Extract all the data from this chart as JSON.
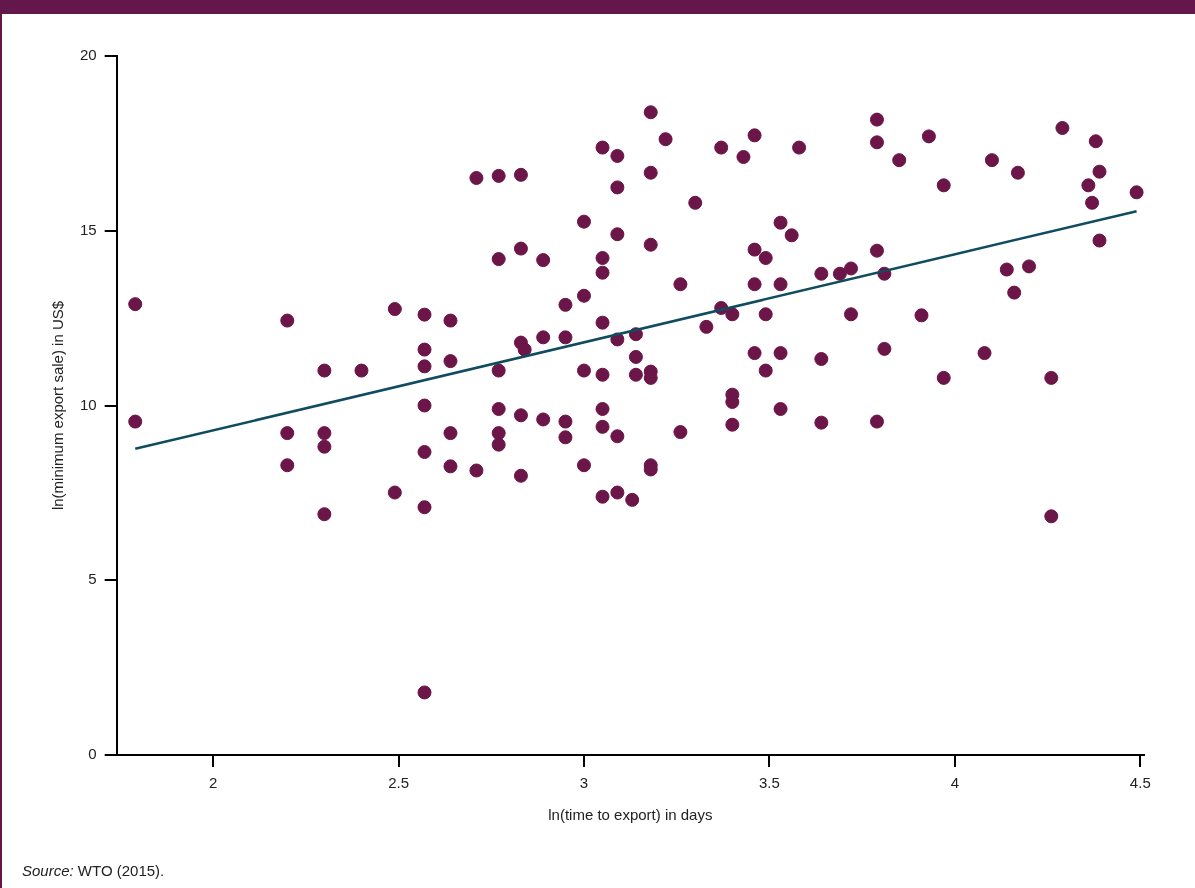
{
  "chart_data": {
    "type": "scatter",
    "xlabel": "ln(time to export) in days",
    "ylabel": "ln(minimum export sale) in US$",
    "annotations": [
      "Source: WTO (2015)."
    ],
    "xlim": [
      1.74,
      4.51
    ],
    "xticks": [
      2,
      2.5,
      3,
      3.5,
      4,
      4.5
    ],
    "ylim": [
      0,
      20
    ],
    "yticks": [
      0,
      5,
      10,
      15,
      20
    ],
    "grid": false,
    "legend": false,
    "series": [
      {
        "marker": "circle",
        "color": "#6b1548",
        "x": [
          1.79,
          1.79,
          2.2,
          2.2,
          2.2,
          2.3,
          2.3,
          2.3,
          2.3,
          2.4,
          2.49,
          2.49,
          2.57,
          2.57,
          2.57,
          2.57,
          2.57,
          2.57,
          2.57,
          2.64,
          2.64,
          2.64,
          2.64,
          2.71,
          2.71,
          2.77,
          2.77,
          2.77,
          2.77,
          2.77,
          2.77,
          2.83,
          2.83,
          2.83,
          2.84,
          2.83,
          2.83,
          2.89,
          2.89,
          2.89,
          2.95,
          2.95,
          2.95,
          2.95,
          3.0,
          3.0,
          3.0,
          3.0,
          3.05,
          3.05,
          3.05,
          3.05,
          3.05,
          3.05,
          3.05,
          3.05,
          3.09,
          3.09,
          3.09,
          3.09,
          3.09,
          3.09,
          3.14,
          3.14,
          3.14,
          3.13,
          3.18,
          3.18,
          3.18,
          3.18,
          3.18,
          3.18,
          3.18,
          3.22,
          3.26,
          3.26,
          3.3,
          3.33,
          3.37,
          3.37,
          3.4,
          3.4,
          3.4,
          3.4,
          3.43,
          3.46,
          3.46,
          3.46,
          3.46,
          3.49,
          3.49,
          3.49,
          3.53,
          3.53,
          3.53,
          3.53,
          3.56,
          3.58,
          3.64,
          3.64,
          3.64,
          3.69,
          3.72,
          3.72,
          3.79,
          3.79,
          3.79,
          3.79,
          3.81,
          3.81,
          3.85,
          3.91,
          3.93,
          3.97,
          3.97,
          4.08,
          4.1,
          4.14,
          4.16,
          4.17,
          4.2,
          4.26,
          4.26,
          4.29,
          4.36,
          4.37,
          4.38,
          4.39,
          4.39,
          4.49
        ],
        "values": [
          12.9,
          9.54,
          12.43,
          9.21,
          8.29,
          11.0,
          9.21,
          8.82,
          6.89,
          11.0,
          12.76,
          7.51,
          12.6,
          11.6,
          11.12,
          10.0,
          8.67,
          7.09,
          1.79,
          12.43,
          11.27,
          9.21,
          8.26,
          8.14,
          16.51,
          16.57,
          14.19,
          11.0,
          9.9,
          9.21,
          8.88,
          16.6,
          14.49,
          11.8,
          11.6,
          9.72,
          7.99,
          14.16,
          11.95,
          9.6,
          12.88,
          11.95,
          9.54,
          9.09,
          15.26,
          13.14,
          11.0,
          8.29,
          17.38,
          14.22,
          13.8,
          12.37,
          10.88,
          9.9,
          9.39,
          7.39,
          17.14,
          16.24,
          14.9,
          11.89,
          9.12,
          7.51,
          12.04,
          11.39,
          10.88,
          7.3,
          18.39,
          16.66,
          14.6,
          10.97,
          10.79,
          8.29,
          8.17,
          17.62,
          13.47,
          9.24,
          15.8,
          12.25,
          17.38,
          12.79,
          12.61,
          10.31,
          10.1,
          9.45,
          17.11,
          17.73,
          14.46,
          13.47,
          11.5,
          14.22,
          12.61,
          11.0,
          15.23,
          13.47,
          11.5,
          9.9,
          14.87,
          17.38,
          13.77,
          11.33,
          9.51,
          13.77,
          13.92,
          12.61,
          18.18,
          17.53,
          14.43,
          9.54,
          13.77,
          11.62,
          17.02,
          12.58,
          17.7,
          16.3,
          10.79,
          11.5,
          17.02,
          13.89,
          13.23,
          16.66,
          13.98,
          10.79,
          6.83,
          17.94,
          16.3,
          15.8,
          17.56,
          16.69,
          14.72,
          16.1
        ]
      },
      {
        "type": "line",
        "marker": "none",
        "color": "#0f4c60",
        "x": [
          1.79,
          4.49
        ],
        "values": [
          8.76,
          15.56
        ]
      }
    ]
  }
}
